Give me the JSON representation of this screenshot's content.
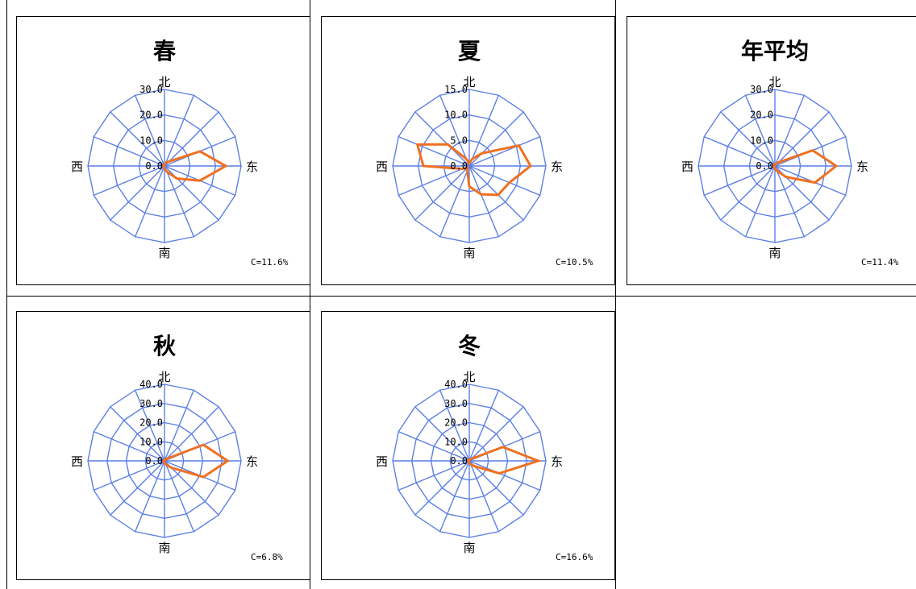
{
  "labels": {
    "north": "北",
    "south": "南",
    "east": "东",
    "west": "西"
  },
  "colors": {
    "grid": "#5b7fe6",
    "series": "#f07020",
    "border": "#000000"
  },
  "chart_data": [
    {
      "type": "radar",
      "title": "春",
      "calm": "C=11.6%",
      "directions": [
        "N",
        "NNE",
        "NE",
        "ENE",
        "E",
        "ESE",
        "SE",
        "SSE",
        "S",
        "SSW",
        "SW",
        "WSW",
        "W",
        "WNW",
        "NW",
        "NNW"
      ],
      "ticks": [
        "0.0",
        "10.0",
        "20.0",
        "30.0"
      ],
      "rmax": 30,
      "values": [
        0.5,
        1.5,
        2.5,
        15,
        24,
        15,
        7,
        2.5,
        1,
        0.5,
        0.5,
        0.5,
        0.5,
        0.5,
        0.5,
        0.5
      ],
      "grid": true
    },
    {
      "type": "radar",
      "title": "夏",
      "calm": "C=10.5%",
      "directions": [
        "N",
        "NNE",
        "NE",
        "ENE",
        "E",
        "ESE",
        "SE",
        "SSE",
        "S",
        "SSW",
        "SW",
        "WSW",
        "W",
        "WNW",
        "NW",
        "NNW"
      ],
      "ticks": [
        "0.0",
        "5.0",
        "10.0",
        "15.0"
      ],
      "rmax": 15,
      "values": [
        0.5,
        1.5,
        3.5,
        10.5,
        12,
        8.5,
        8,
        6,
        4,
        1,
        0.5,
        1.5,
        9,
        11,
        6,
        1.5
      ],
      "grid": true
    },
    {
      "type": "radar",
      "title": "年平均",
      "calm": "C=11.4%",
      "directions": [
        "N",
        "NNE",
        "NE",
        "ENE",
        "E",
        "ESE",
        "SE",
        "SSE",
        "S",
        "SSW",
        "SW",
        "WSW",
        "W",
        "WNW",
        "NW",
        "NNW"
      ],
      "ticks": [
        "0.0",
        "10.0",
        "20.0",
        "30.0"
      ],
      "rmax": 30,
      "values": [
        0.5,
        1,
        2,
        16,
        24,
        17,
        6,
        2,
        1,
        0.5,
        0.5,
        0.5,
        0.5,
        0.5,
        0.5,
        0.5
      ],
      "grid": true
    },
    {
      "type": "radar",
      "title": "秋",
      "calm": "C=6.8%",
      "directions": [
        "N",
        "NNE",
        "NE",
        "ENE",
        "E",
        "ESE",
        "SE",
        "SSE",
        "S",
        "SSW",
        "SW",
        "WSW",
        "W",
        "WNW",
        "NW",
        "NNW"
      ],
      "ticks": [
        "0.0",
        "10.0",
        "20.0",
        "30.0",
        "40.0"
      ],
      "rmax": 40,
      "values": [
        0.5,
        1,
        1.5,
        22,
        33,
        22,
        5,
        2,
        1,
        0.5,
        0.5,
        0.5,
        0.5,
        0.5,
        0.5,
        0.5
      ],
      "grid": true
    },
    {
      "type": "radar",
      "title": "冬",
      "calm": "C=16.6%",
      "directions": [
        "N",
        "NNE",
        "NE",
        "ENE",
        "E",
        "ESE",
        "SE",
        "SSE",
        "S",
        "SSW",
        "SW",
        "WSW",
        "W",
        "WNW",
        "NW",
        "NNW"
      ],
      "ticks": [
        "0.0",
        "10.0",
        "20.0",
        "30.0",
        "40.0"
      ],
      "rmax": 40,
      "values": [
        0.5,
        1,
        1.5,
        19,
        36,
        17,
        4,
        2,
        1,
        0.5,
        0.5,
        0.5,
        0.5,
        0.5,
        0.5,
        0.5
      ],
      "grid": true
    }
  ]
}
